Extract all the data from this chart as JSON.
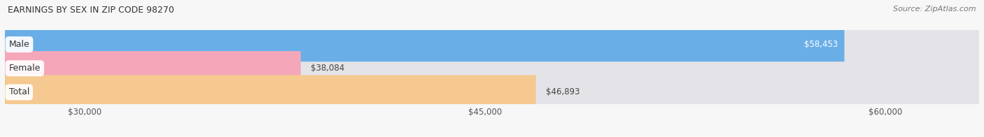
{
  "title": "EARNINGS BY SEX IN ZIP CODE 98270",
  "source": "Source: ZipAtlas.com",
  "categories": [
    "Male",
    "Female",
    "Total"
  ],
  "values": [
    58453,
    38084,
    46893
  ],
  "bar_colors": [
    "#6aaee8",
    "#f4a7b9",
    "#f5c990"
  ],
  "bar_bg_color": "#e4e4e8",
  "xmin": 27000,
  "xmax": 63500,
  "xticks": [
    30000,
    45000,
    60000
  ],
  "xtick_labels": [
    "$30,000",
    "$45,000",
    "$60,000"
  ],
  "value_labels": [
    "$58,453",
    "$38,084",
    "$46,893"
  ],
  "value_inside": [
    true,
    false,
    false
  ],
  "title_fontsize": 9,
  "source_fontsize": 8,
  "tick_fontsize": 8.5,
  "bar_label_fontsize": 8.5,
  "cat_label_fontsize": 9,
  "bar_height": 0.72,
  "background_color": "#f7f7f7",
  "grid_color": "#d0d0d0"
}
